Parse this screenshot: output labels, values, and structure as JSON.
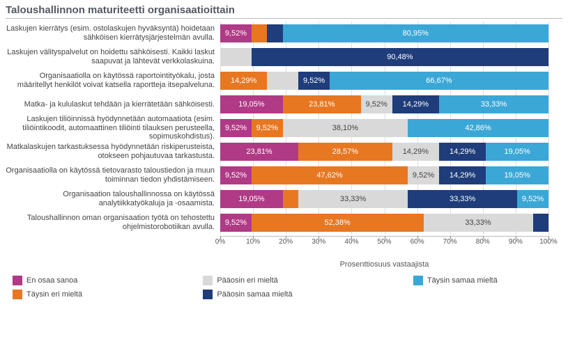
{
  "chart": {
    "type": "stacked-bar",
    "title": "Taloushallinnon maturiteetti organisaatioittain",
    "x_axis_label": "Prosenttiosuus vastaajista",
    "xlim": [
      0,
      100
    ],
    "xtick_step": 10,
    "tick_suffix": "%",
    "colors": {
      "en_osaa_sanoa": "#b03a85",
      "taysin_eri_mielta": "#e87722",
      "paaosin_eri_mielta": "#d9d9d9",
      "paaosin_samaa_mielta": "#1f3d7a",
      "taysin_samaa_mielta": "#3ba7d6",
      "grid": "#dddddd",
      "label_white": "#ffffff",
      "label_dark": "#444444"
    },
    "series_order": [
      "en_osaa_sanoa",
      "taysin_eri_mielta",
      "paaosin_eri_mielta",
      "paaosin_samaa_mielta",
      "taysin_samaa_mielta"
    ],
    "legend_order": [
      "en_osaa_sanoa",
      "paaosin_eri_mielta",
      "taysin_samaa_mielta",
      "taysin_eri_mielta",
      "paaosin_samaa_mielta"
    ],
    "series_labels": {
      "en_osaa_sanoa": "En osaa sanoa",
      "taysin_eri_mielta": "Täysin eri mieltä",
      "paaosin_eri_mielta": "Pääosin eri mieltä",
      "paaosin_samaa_mielta": "Pääosin samaa mieltä",
      "taysin_samaa_mielta": "Täysin samaa mieltä"
    },
    "rows": [
      {
        "label": "Laskujen kierrätys (esim. ostolaskujen hyväksyntä) hoidetaan sähköisen kierrätysjärjestelmän avulla.",
        "values": {
          "en_osaa_sanoa": 9.52,
          "taysin_eri_mielta": 4.76,
          "paaosin_eri_mielta": 0,
          "paaosin_samaa_mielta": 4.77,
          "taysin_samaa_mielta": 80.95
        },
        "show": {
          "en_osaa_sanoa": "9,52%",
          "taysin_samaa_mielta": "80,95%"
        }
      },
      {
        "label": "Laskujen välityspalvelut on hoidettu sähköisesti. Kaikki laskut saapuvat ja lähtevät verkkolaskuina.",
        "values": {
          "en_osaa_sanoa": 0,
          "taysin_eri_mielta": 0,
          "paaosin_eri_mielta": 9.52,
          "paaosin_samaa_mielta": 90.48,
          "taysin_samaa_mielta": 0
        },
        "show": {
          "paaosin_samaa_mielta": "90,48%"
        }
      },
      {
        "label": "Organisaatiolla on käytössä raportointityökalu, josta määritellyt henkilöt voivat katsella raportteja itsepalveluna.",
        "values": {
          "en_osaa_sanoa": 0,
          "taysin_eri_mielta": 14.29,
          "paaosin_eri_mielta": 9.52,
          "paaosin_samaa_mielta": 9.52,
          "taysin_samaa_mielta": 66.67
        },
        "show": {
          "taysin_eri_mielta": "14,29%",
          "paaosin_samaa_mielta": "9,52%",
          "taysin_samaa_mielta": "66,67%"
        }
      },
      {
        "label": "Matka- ja kululaskut tehdään ja kierrätetään sähköisesti.",
        "values": {
          "en_osaa_sanoa": 19.05,
          "taysin_eri_mielta": 23.81,
          "paaosin_eri_mielta": 9.52,
          "paaosin_samaa_mielta": 14.29,
          "taysin_samaa_mielta": 33.33
        },
        "show": {
          "en_osaa_sanoa": "19,05%",
          "taysin_eri_mielta": "23,81%",
          "paaosin_eri_mielta": "9,52%",
          "paaosin_samaa_mielta": "14,29%",
          "taysin_samaa_mielta": "33,33%"
        }
      },
      {
        "label": "Laskujen tiliöinnissä hyödynnetään automaatiota (esim. tiliöintikoodit, automaattinen tiliöinti tilauksen perusteella, sopimuskohdistus).",
        "values": {
          "en_osaa_sanoa": 9.52,
          "taysin_eri_mielta": 9.52,
          "paaosin_eri_mielta": 38.1,
          "paaosin_samaa_mielta": 0,
          "taysin_samaa_mielta": 42.86
        },
        "show": {
          "en_osaa_sanoa": "9,52%",
          "taysin_eri_mielta": "9,52%",
          "paaosin_eri_mielta": "38,10%",
          "taysin_samaa_mielta": "42,86%"
        }
      },
      {
        "label": "Matkalaskujen tarkastuksessa hyödynnetään riskiperusteista, otokseen pohjautuvaa tarkastusta.",
        "values": {
          "en_osaa_sanoa": 23.81,
          "taysin_eri_mielta": 28.57,
          "paaosin_eri_mielta": 14.29,
          "paaosin_samaa_mielta": 14.29,
          "taysin_samaa_mielta": 19.05
        },
        "show": {
          "en_osaa_sanoa": "23,81%",
          "taysin_eri_mielta": "28,57%",
          "paaosin_eri_mielta": "14,29%",
          "paaosin_samaa_mielta": "14,29%",
          "taysin_samaa_mielta": "19,05%"
        }
      },
      {
        "label": "Organisaatiolla on käytössä tietovarasto taloustiedon ja muun toiminnan tiedon yhdistämiseen.",
        "values": {
          "en_osaa_sanoa": 9.52,
          "taysin_eri_mielta": 47.62,
          "paaosin_eri_mielta": 9.52,
          "paaosin_samaa_mielta": 14.29,
          "taysin_samaa_mielta": 19.05
        },
        "show": {
          "en_osaa_sanoa": "9,52%",
          "taysin_eri_mielta": "47,62%",
          "paaosin_eri_mielta": "9,52%",
          "paaosin_samaa_mielta": "14,29%",
          "taysin_samaa_mielta": "19,05%"
        }
      },
      {
        "label": "Organisaation taloushallinnossa on käytössä analytiikkatyökaluja ja -osaamista.",
        "values": {
          "en_osaa_sanoa": 19.05,
          "taysin_eri_mielta": 4.77,
          "paaosin_eri_mielta": 33.33,
          "paaosin_samaa_mielta": 33.33,
          "taysin_samaa_mielta": 9.52
        },
        "show": {
          "en_osaa_sanoa": "19,05%",
          "paaosin_eri_mielta": "33,33%",
          "paaosin_samaa_mielta": "33,33%",
          "taysin_samaa_mielta": "9,52%"
        }
      },
      {
        "label": "Taloushallinnon oman organisaation työtä on tehostettu ohjelmistorobotiikan avulla.",
        "values": {
          "en_osaa_sanoa": 9.52,
          "taysin_eri_mielta": 52.38,
          "paaosin_eri_mielta": 33.33,
          "paaosin_samaa_mielta": 4.77,
          "taysin_samaa_mielta": 0
        },
        "show": {
          "en_osaa_sanoa": "9,52%",
          "taysin_eri_mielta": "52,38%",
          "paaosin_eri_mielta": "33,33%"
        }
      }
    ]
  }
}
